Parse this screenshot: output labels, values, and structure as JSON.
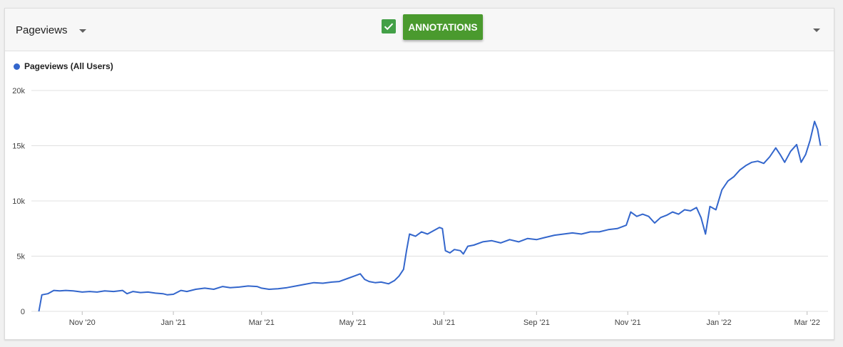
{
  "toolbar": {
    "metric": "Pageviews",
    "annotations_label": "ANNOTATIONS",
    "annotations_checked": true
  },
  "colors": {
    "series": "#3366cc",
    "accent_green": "#4a9a2e",
    "checkbox_green": "#43a047",
    "grid": "#e0e0e0"
  },
  "chart_data": {
    "type": "line",
    "legend": {
      "position": "top-left"
    },
    "grid": true,
    "ylim": [
      0,
      20000
    ],
    "y_ticks": [
      {
        "value": 0,
        "label": "0"
      },
      {
        "value": 5000,
        "label": "5k"
      },
      {
        "value": 10000,
        "label": "10k"
      },
      {
        "value": 15000,
        "label": "15k"
      },
      {
        "value": 20000,
        "label": "20k"
      }
    ],
    "xlim": [
      "2020-09-28",
      "2022-03-15"
    ],
    "x_ticks": [
      {
        "date": "2020-11-01",
        "label": "Nov '20"
      },
      {
        "date": "2021-01-01",
        "label": "Jan '21"
      },
      {
        "date": "2021-03-01",
        "label": "Mar '21"
      },
      {
        "date": "2021-05-01",
        "label": "May '21"
      },
      {
        "date": "2021-07-01",
        "label": "Jul '21"
      },
      {
        "date": "2021-09-01",
        "label": "Sep '21"
      },
      {
        "date": "2021-11-01",
        "label": "Nov '21"
      },
      {
        "date": "2022-01-01",
        "label": "Jan '22"
      },
      {
        "date": "2022-03-01",
        "label": "Mar '22"
      }
    ],
    "series": [
      {
        "name": "Pageviews (All Users)",
        "points": [
          [
            "2020-10-03",
            0
          ],
          [
            "2020-10-05",
            1500
          ],
          [
            "2020-10-09",
            1600
          ],
          [
            "2020-10-13",
            1900
          ],
          [
            "2020-10-17",
            1850
          ],
          [
            "2020-10-21",
            1900
          ],
          [
            "2020-10-26",
            1850
          ],
          [
            "2020-11-01",
            1750
          ],
          [
            "2020-11-06",
            1800
          ],
          [
            "2020-11-11",
            1750
          ],
          [
            "2020-11-16",
            1850
          ],
          [
            "2020-11-22",
            1800
          ],
          [
            "2020-11-28",
            1900
          ],
          [
            "2020-12-01",
            1600
          ],
          [
            "2020-12-05",
            1800
          ],
          [
            "2020-12-10",
            1700
          ],
          [
            "2020-12-15",
            1750
          ],
          [
            "2020-12-20",
            1650
          ],
          [
            "2020-12-25",
            1600
          ],
          [
            "2020-12-28",
            1500
          ],
          [
            "2021-01-01",
            1550
          ],
          [
            "2021-01-06",
            1900
          ],
          [
            "2021-01-10",
            1800
          ],
          [
            "2021-01-16",
            2000
          ],
          [
            "2021-01-22",
            2100
          ],
          [
            "2021-01-28",
            2000
          ],
          [
            "2021-02-03",
            2250
          ],
          [
            "2021-02-08",
            2150
          ],
          [
            "2021-02-14",
            2200
          ],
          [
            "2021-02-20",
            2300
          ],
          [
            "2021-02-26",
            2250
          ],
          [
            "2021-03-01",
            2100
          ],
          [
            "2021-03-06",
            2000
          ],
          [
            "2021-03-12",
            2050
          ],
          [
            "2021-03-18",
            2150
          ],
          [
            "2021-03-24",
            2300
          ],
          [
            "2021-03-30",
            2450
          ],
          [
            "2021-04-05",
            2600
          ],
          [
            "2021-04-11",
            2550
          ],
          [
            "2021-04-17",
            2650
          ],
          [
            "2021-04-22",
            2700
          ],
          [
            "2021-04-28",
            3000
          ],
          [
            "2021-05-02",
            3200
          ],
          [
            "2021-05-06",
            3400
          ],
          [
            "2021-05-09",
            2900
          ],
          [
            "2021-05-12",
            2700
          ],
          [
            "2021-05-16",
            2600
          ],
          [
            "2021-05-20",
            2650
          ],
          [
            "2021-05-25",
            2500
          ],
          [
            "2021-05-29",
            2800
          ],
          [
            "2021-06-01",
            3200
          ],
          [
            "2021-06-04",
            3800
          ],
          [
            "2021-06-06",
            5500
          ],
          [
            "2021-06-08",
            7000
          ],
          [
            "2021-06-12",
            6800
          ],
          [
            "2021-06-16",
            7200
          ],
          [
            "2021-06-20",
            7000
          ],
          [
            "2021-06-24",
            7300
          ],
          [
            "2021-06-28",
            7600
          ],
          [
            "2021-06-30",
            7500
          ],
          [
            "2021-07-02",
            5500
          ],
          [
            "2021-07-05",
            5300
          ],
          [
            "2021-07-08",
            5600
          ],
          [
            "2021-07-12",
            5500
          ],
          [
            "2021-07-14",
            5200
          ],
          [
            "2021-07-17",
            5900
          ],
          [
            "2021-07-21",
            6000
          ],
          [
            "2021-07-27",
            6300
          ],
          [
            "2021-08-02",
            6400
          ],
          [
            "2021-08-08",
            6200
          ],
          [
            "2021-08-14",
            6500
          ],
          [
            "2021-08-20",
            6300
          ],
          [
            "2021-08-26",
            6600
          ],
          [
            "2021-09-01",
            6500
          ],
          [
            "2021-09-07",
            6700
          ],
          [
            "2021-09-13",
            6900
          ],
          [
            "2021-09-19",
            7000
          ],
          [
            "2021-09-25",
            7100
          ],
          [
            "2021-10-01",
            7000
          ],
          [
            "2021-10-07",
            7200
          ],
          [
            "2021-10-13",
            7200
          ],
          [
            "2021-10-19",
            7400
          ],
          [
            "2021-10-25",
            7500
          ],
          [
            "2021-10-31",
            7800
          ],
          [
            "2021-11-03",
            9000
          ],
          [
            "2021-11-07",
            8600
          ],
          [
            "2021-11-11",
            8800
          ],
          [
            "2021-11-15",
            8600
          ],
          [
            "2021-11-19",
            8000
          ],
          [
            "2021-11-23",
            8500
          ],
          [
            "2021-11-27",
            8700
          ],
          [
            "2021-12-01",
            9000
          ],
          [
            "2021-12-05",
            8800
          ],
          [
            "2021-12-09",
            9200
          ],
          [
            "2021-12-13",
            9100
          ],
          [
            "2021-12-17",
            9400
          ],
          [
            "2021-12-20",
            8500
          ],
          [
            "2021-12-23",
            7000
          ],
          [
            "2021-12-26",
            9500
          ],
          [
            "2021-12-30",
            9200
          ],
          [
            "2022-01-03",
            11000
          ],
          [
            "2022-01-07",
            11800
          ],
          [
            "2022-01-11",
            12200
          ],
          [
            "2022-01-15",
            12800
          ],
          [
            "2022-01-19",
            13200
          ],
          [
            "2022-01-23",
            13500
          ],
          [
            "2022-01-27",
            13600
          ],
          [
            "2022-01-31",
            13400
          ],
          [
            "2022-02-04",
            14000
          ],
          [
            "2022-02-08",
            14800
          ],
          [
            "2022-02-11",
            14200
          ],
          [
            "2022-02-14",
            13500
          ],
          [
            "2022-02-18",
            14500
          ],
          [
            "2022-02-22",
            15100
          ],
          [
            "2022-02-25",
            13500
          ],
          [
            "2022-02-28",
            14200
          ],
          [
            "2022-03-03",
            15500
          ],
          [
            "2022-03-06",
            17200
          ],
          [
            "2022-03-08",
            16500
          ],
          [
            "2022-03-10",
            15000
          ]
        ]
      }
    ]
  }
}
